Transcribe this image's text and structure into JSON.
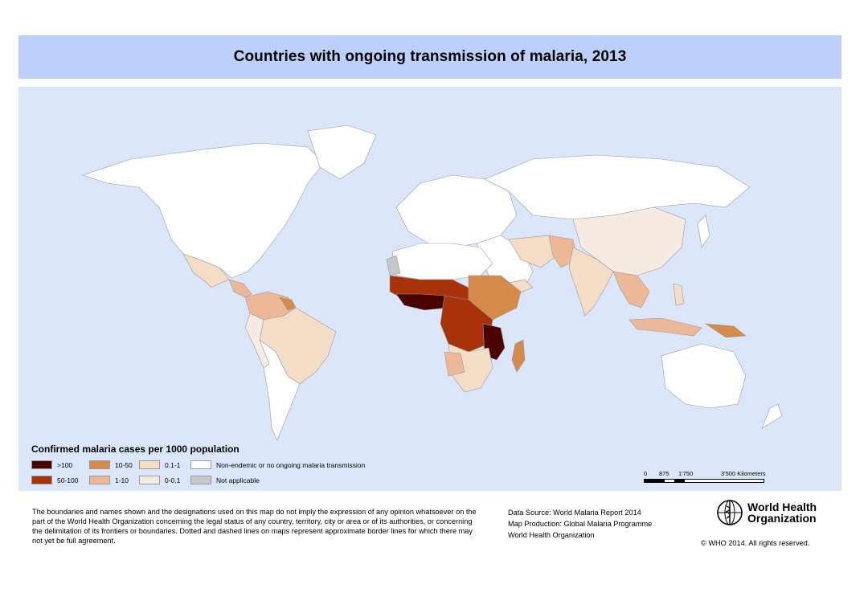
{
  "title": "Countries with ongoing transmission of malaria, 2013",
  "colors": {
    "title_bar": "#bdd0fb",
    "ocean": "#dce6fb",
    "non_endemic": "#ffffff",
    "not_applicable": "#c8c8c8"
  },
  "legend": {
    "title": "Confirmed malaria cases per 1000 population",
    "items": [
      {
        "label": ">100",
        "color": "#4a0400"
      },
      {
        "label": "50-100",
        "color": "#a8320a"
      },
      {
        "label": "10-50",
        "color": "#d48a4a"
      },
      {
        "label": "1-10",
        "color": "#ecb898"
      },
      {
        "label": "0.1-1",
        "color": "#f3ddc6"
      },
      {
        "label": "0-0.1",
        "color": "#f6ebe3"
      },
      {
        "label": "Non-endemic or no ongoing malaria transmission",
        "color": "#ffffff"
      },
      {
        "label": "Not applicable",
        "color": "#c8c8c8"
      }
    ]
  },
  "scale_bar": {
    "ticks": [
      "0",
      "875",
      "1'750",
      "3'500 Kilometers"
    ]
  },
  "disclaimer": "The boundaries and names shown and the designations used on this map do not imply the expression of any opinion whatsoever on the part of the World Health Organization concerning the legal status of any country, territory, city or area or of its authorities, or concerning the delimitation of its frontiers or boundaries. Dotted and dashed lines on maps represent approximate border lines for which there may not yet be full agreement.",
  "source": {
    "data_source": "Data Source: World Malaria Report 2014",
    "map_production": "Map Production: Global Malaria Programme",
    "organization": "World Health Organization"
  },
  "logo_text": "World Health Organization",
  "copyright": "© WHO 2014. All rights reserved."
}
